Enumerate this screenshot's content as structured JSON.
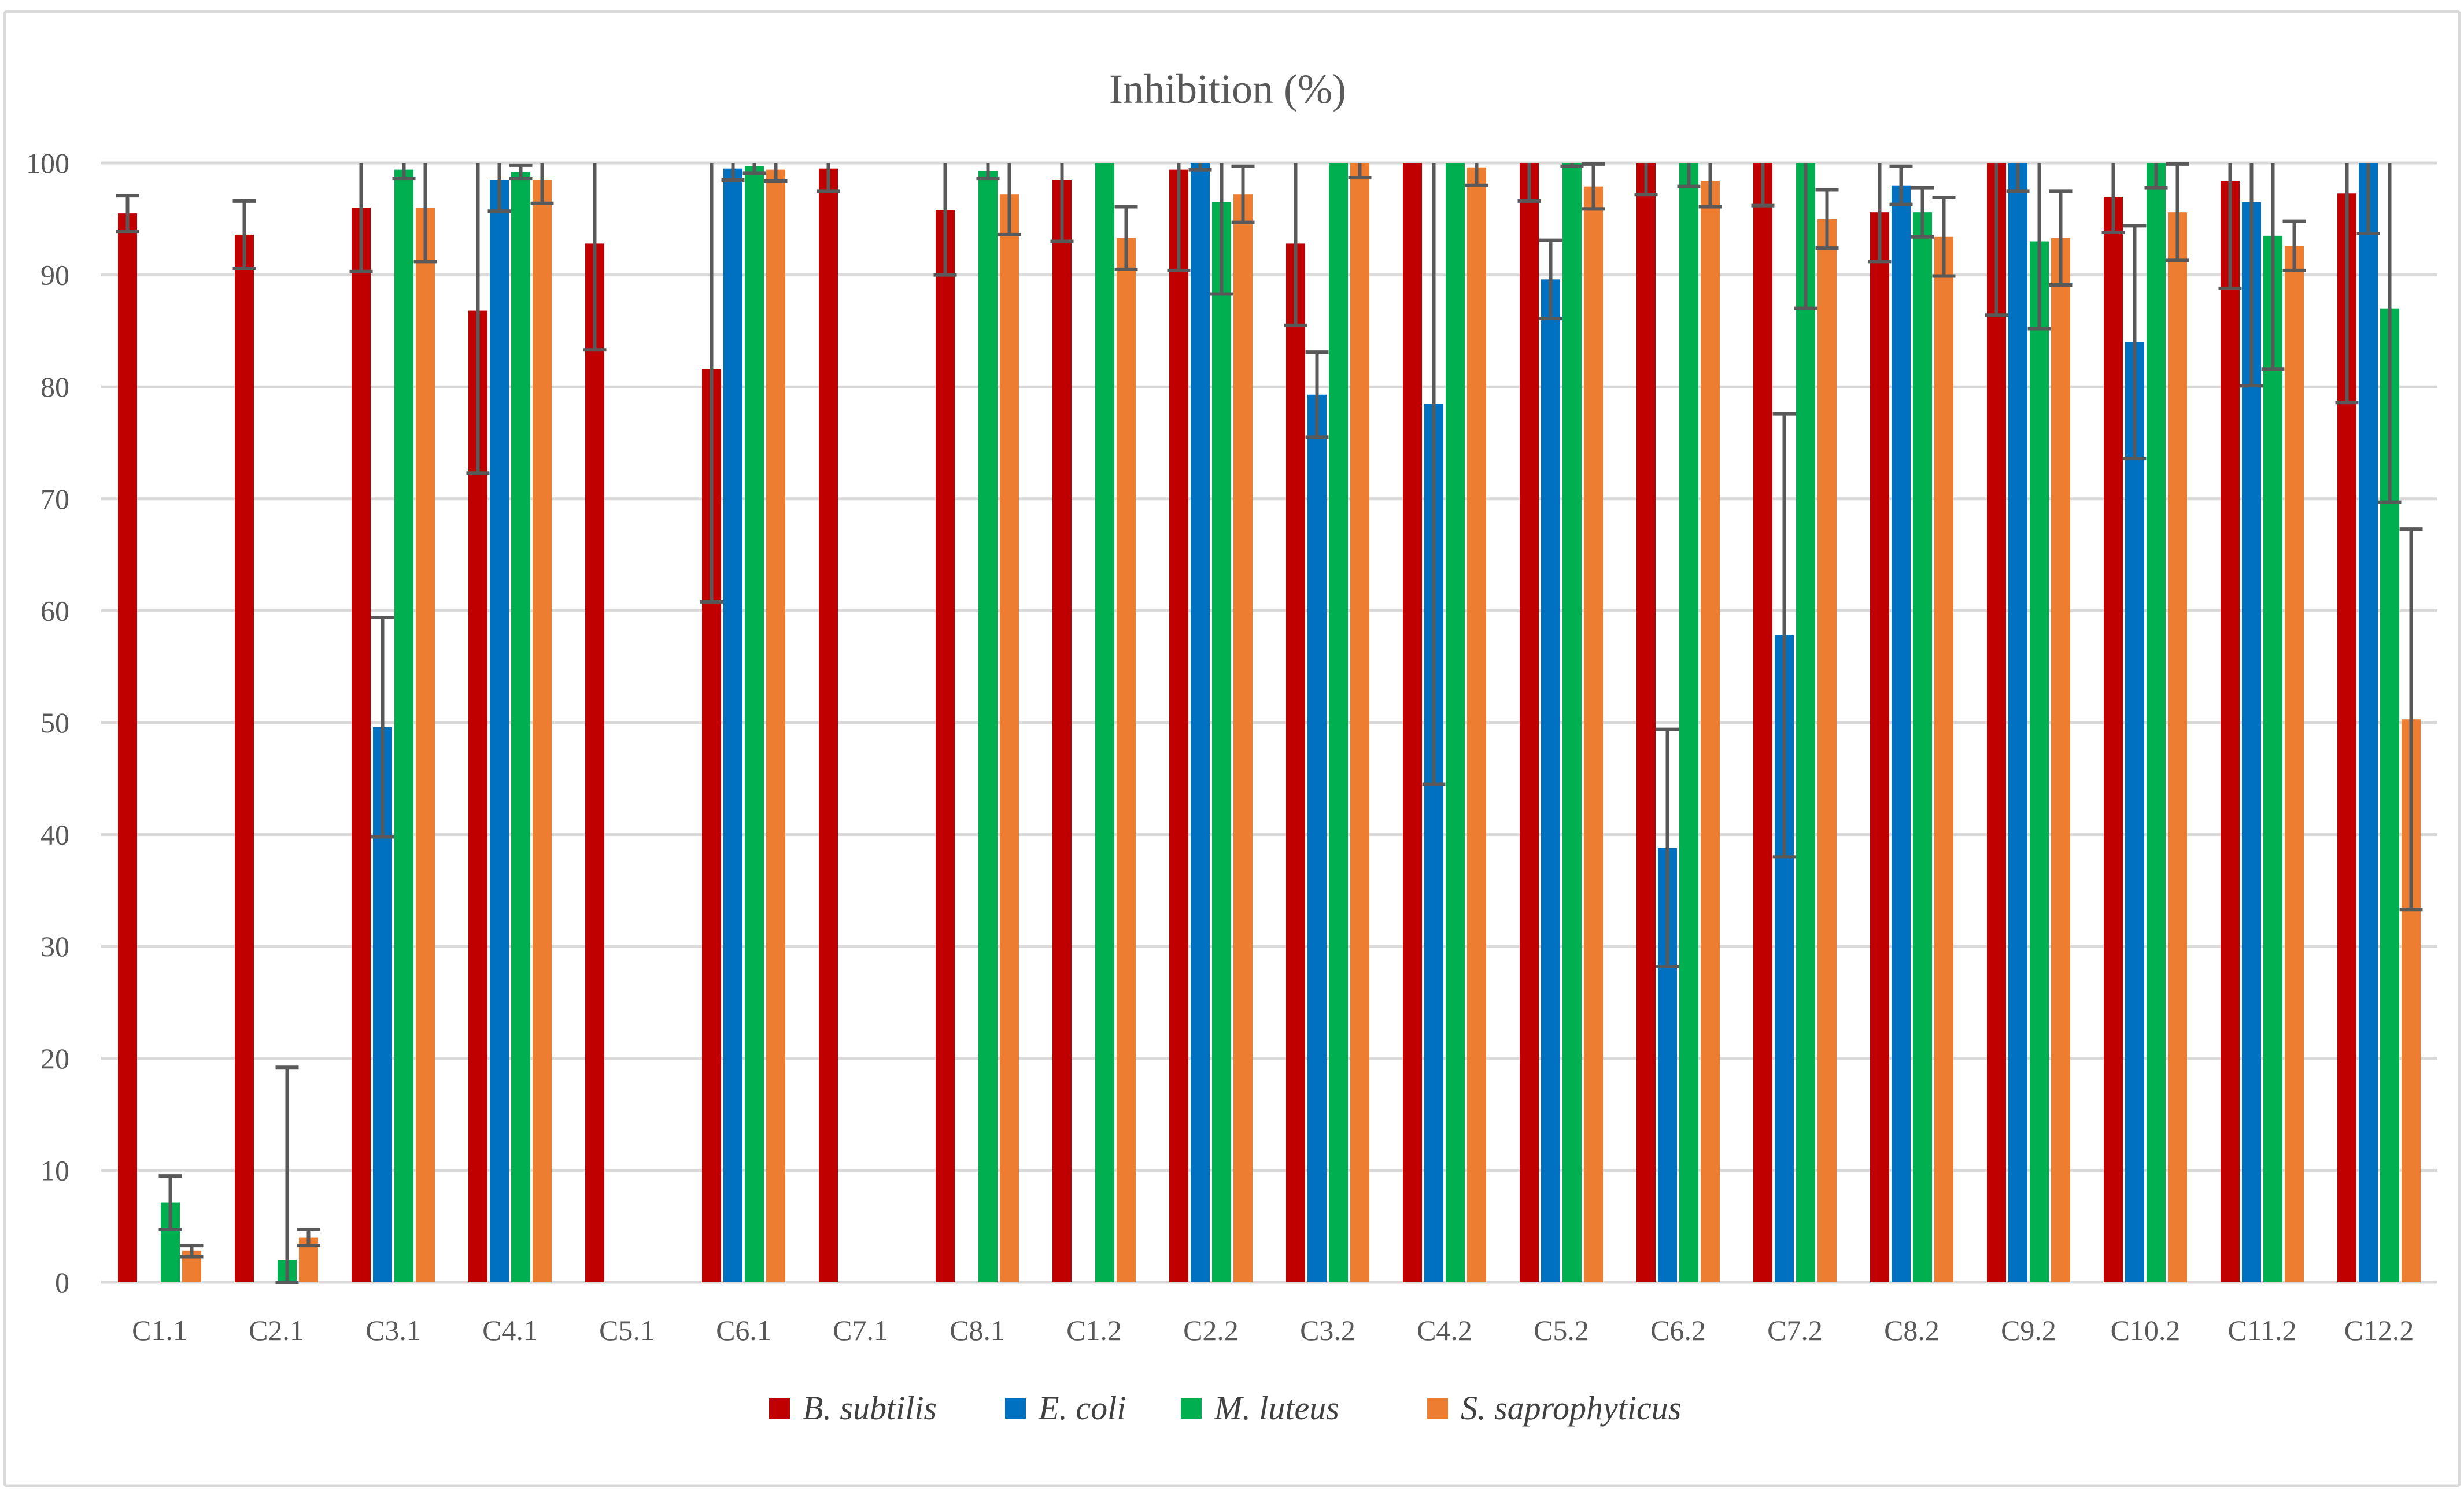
{
  "chart_data": {
    "type": "bar",
    "title": "Inhibition (%)",
    "xlabel": "",
    "ylabel": "",
    "ylim": [
      0,
      100
    ],
    "yticks": [
      0,
      10,
      20,
      30,
      40,
      50,
      60,
      70,
      80,
      90,
      100
    ],
    "grid": true,
    "legend_position": "bottom",
    "categories": [
      "C1.1",
      "C2.1",
      "C3.1",
      "C4.1",
      "C5.1",
      "C6.1",
      "C7.1",
      "C8.1",
      "C1.2",
      "C2.2",
      "C3.2",
      "C4.2",
      "C5.2",
      "C6.2",
      "C7.2",
      "C8.2",
      "C9.2",
      "C10.2",
      "C11.2",
      "C12.2"
    ],
    "series": [
      {
        "name": "B. subtilis",
        "color": "#c00000",
        "values": [
          95.5,
          93.6,
          96.0,
          86.8,
          92.8,
          81.6,
          99.5,
          95.8,
          98.5,
          99.4,
          92.8,
          100,
          100,
          100,
          100,
          95.6,
          100,
          97.0,
          98.4,
          97.3
        ],
        "errors": [
          1.6,
          3.0,
          5.7,
          14.5,
          9.5,
          20.8,
          2.0,
          5.8,
          5.5,
          9.0,
          7.3,
          0,
          3.4,
          2.8,
          3.8,
          4.4,
          13.6,
          3.2,
          9.6,
          18.7
        ]
      },
      {
        "name": "E. coli",
        "color": "#0070c0",
        "values": [
          0,
          0,
          49.6,
          98.5,
          0,
          99.5,
          0,
          0,
          0,
          100,
          79.3,
          78.5,
          89.6,
          38.8,
          57.8,
          98.0,
          100,
          84.0,
          96.5,
          100
        ],
        "errors": [
          0,
          0,
          9.8,
          2.8,
          0,
          1.0,
          0,
          0,
          0,
          0.6,
          3.8,
          34.0,
          3.5,
          10.6,
          19.8,
          1.7,
          2.5,
          10.4,
          16.4,
          6.3
        ]
      },
      {
        "name": "M. luteus",
        "color": "#00b050",
        "values": [
          7.1,
          2.0,
          99.4,
          99.2,
          0,
          99.7,
          0,
          99.3,
          100,
          96.5,
          100,
          100,
          100,
          100,
          100,
          95.6,
          93.0,
          100,
          93.5,
          87.0
        ],
        "errors": [
          2.4,
          17.2,
          0.8,
          0.6,
          0,
          0.6,
          0,
          0.7,
          0,
          8.2,
          0,
          0,
          0.3,
          2.1,
          13.0,
          2.2,
          7.8,
          2.2,
          11.9,
          17.3
        ]
      },
      {
        "name": "S. saprophyticus",
        "color": "#ed7d31",
        "values": [
          2.8,
          4.0,
          96.0,
          98.5,
          0,
          99.4,
          0,
          97.2,
          93.3,
          97.2,
          100,
          99.6,
          97.9,
          98.4,
          95.0,
          93.4,
          93.3,
          95.6,
          92.6,
          50.3
        ],
        "errors": [
          0.5,
          0.7,
          4.8,
          2.1,
          0,
          1.0,
          0,
          3.6,
          2.8,
          2.5,
          1.3,
          1.6,
          2.0,
          2.3,
          2.6,
          3.5,
          4.2,
          4.3,
          2.2,
          17.0
        ]
      }
    ]
  }
}
